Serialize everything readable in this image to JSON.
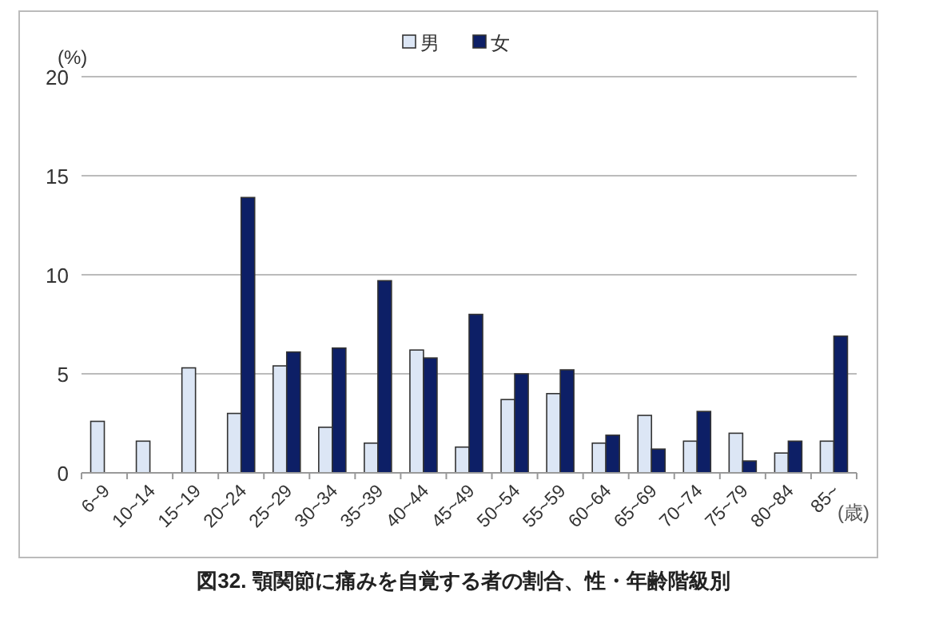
{
  "chart_data": {
    "type": "bar",
    "title": "図32. 顎関節に痛みを自覚する者の割合、性・年齢階級別",
    "ylabel": "(%)",
    "xlabel": "(歳)",
    "categories": [
      "6~9",
      "10~14",
      "15~19",
      "20~24",
      "25~29",
      "30~34",
      "35~39",
      "40~44",
      "45~49",
      "50~54",
      "55~59",
      "60~64",
      "65~69",
      "70~74",
      "75~79",
      "80~84",
      "85~"
    ],
    "series": [
      {
        "name": "男",
        "color": "#dce6f5",
        "values": [
          2.6,
          1.6,
          5.3,
          3.0,
          5.4,
          2.3,
          1.5,
          6.2,
          1.3,
          3.7,
          4.0,
          1.5,
          2.9,
          1.6,
          2.0,
          1.0,
          1.6
        ]
      },
      {
        "name": "女",
        "color": "#0d1f66",
        "values": [
          0,
          0,
          0,
          13.9,
          6.1,
          6.3,
          9.7,
          5.8,
          8.0,
          5.0,
          5.2,
          1.9,
          1.2,
          3.1,
          0.6,
          1.6,
          6.9
        ]
      }
    ],
    "ylim": [
      0,
      20
    ],
    "yticks": [
      0,
      5,
      10,
      15,
      20
    ],
    "grid": "y",
    "legend": "top"
  }
}
